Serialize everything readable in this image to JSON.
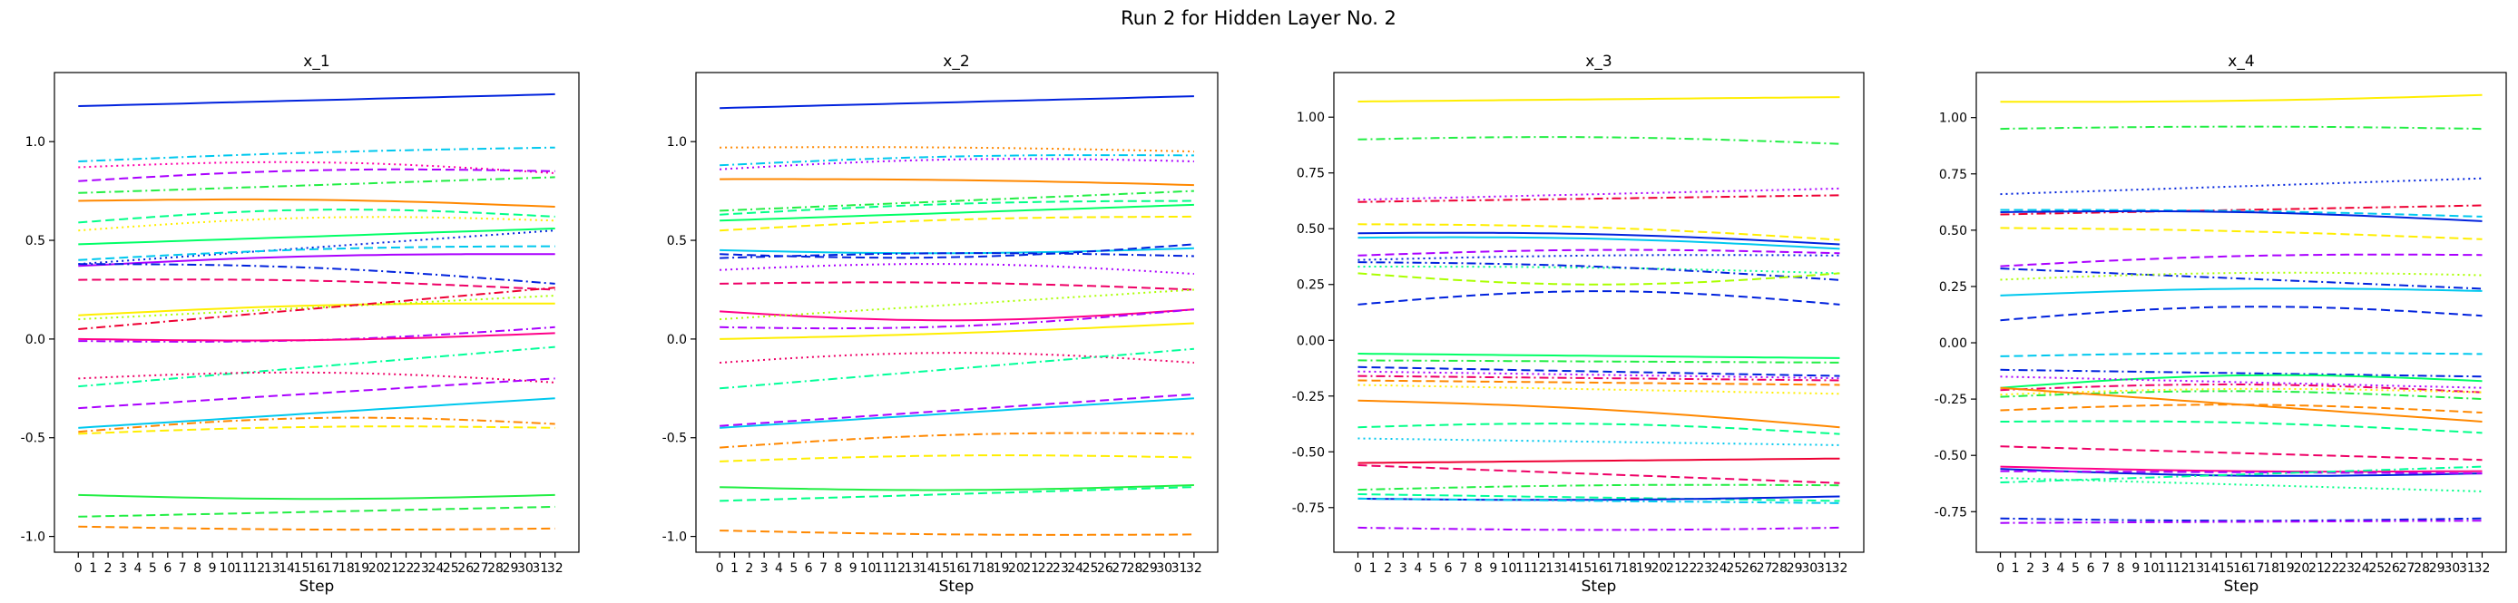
{
  "figure": {
    "title": "Run 2 for Hidden Layer No. 2"
  },
  "chart_data": [
    {
      "type": "line",
      "title": "x_1",
      "xlabel": "Step",
      "ylabel": "",
      "xlim": [
        -1.6,
        33.6
      ],
      "ylim": [
        -1.08,
        1.35
      ],
      "yticks": [
        -1.0,
        -0.5,
        0.0,
        0.5,
        1.0
      ],
      "ytick_labels": [
        "-1.0",
        "-0.5",
        "0.0",
        "0.5",
        "1.0"
      ],
      "series": [
        {
          "color": "#0022dd",
          "style": "solid",
          "start": 1.18,
          "end": 1.24,
          "bend": 0.0
        },
        {
          "color": "#00c8ee",
          "style": "dashdot",
          "start": 0.9,
          "end": 0.97,
          "bend": 0.01
        },
        {
          "color": "#ff00aa",
          "style": "dotted",
          "start": 0.87,
          "end": 0.84,
          "bend": 0.04
        },
        {
          "color": "#aa00ff",
          "style": "dashed",
          "start": 0.8,
          "end": 0.85,
          "bend": 0.03
        },
        {
          "color": "#22ee44",
          "style": "dashdot",
          "start": 0.74,
          "end": 0.82,
          "bend": 0.0
        },
        {
          "color": "#ff8800",
          "style": "solid",
          "start": 0.7,
          "end": 0.67,
          "bend": 0.02
        },
        {
          "color": "#00ff88",
          "style": "dashed",
          "start": 0.59,
          "end": 0.62,
          "bend": 0.05
        },
        {
          "color": "#ffee00",
          "style": "dotted",
          "start": 0.55,
          "end": 0.6,
          "bend": 0.04
        },
        {
          "color": "#00ff66",
          "style": "solid",
          "start": 0.48,
          "end": 0.56,
          "bend": 0.0
        },
        {
          "color": "#0022dd",
          "style": "dotted",
          "start": 0.38,
          "end": 0.55,
          "bend": 0.0
        },
        {
          "color": "#00c8ee",
          "style": "dashed",
          "start": 0.4,
          "end": 0.47,
          "bend": 0.02
        },
        {
          "color": "#aa00ff",
          "style": "solid",
          "start": 0.37,
          "end": 0.43,
          "bend": 0.02
        },
        {
          "color": "#0022dd",
          "style": "dashdot",
          "start": 0.38,
          "end": 0.28,
          "bend": 0.03
        },
        {
          "color": "#ee0066",
          "style": "dashed",
          "start": 0.3,
          "end": 0.25,
          "bend": 0.02
        },
        {
          "color": "#ffee00",
          "style": "solid",
          "start": 0.12,
          "end": 0.18,
          "bend": 0.02
        },
        {
          "color": "#aaff00",
          "style": "dotted",
          "start": 0.1,
          "end": 0.22,
          "bend": 0.0
        },
        {
          "color": "#ee0033",
          "style": "dashdot",
          "start": 0.05,
          "end": 0.26,
          "bend": 0.0
        },
        {
          "color": "#aa00ff",
          "style": "dashdot",
          "start": -0.01,
          "end": 0.06,
          "bend": -0.03
        },
        {
          "color": "#ff0088",
          "style": "solid",
          "start": 0.0,
          "end": 0.03,
          "bend": -0.02
        },
        {
          "color": "#00ff99",
          "style": "dashdot",
          "start": -0.24,
          "end": -0.04,
          "bend": 0.0
        },
        {
          "color": "#ee0066",
          "style": "dotted",
          "start": -0.2,
          "end": -0.22,
          "bend": 0.04
        },
        {
          "color": "#aa00ff",
          "style": "dashed",
          "start": -0.35,
          "end": -0.2,
          "bend": 0.0
        },
        {
          "color": "#00c8ee",
          "style": "solid",
          "start": -0.45,
          "end": -0.3,
          "bend": 0.0
        },
        {
          "color": "#ff8800",
          "style": "dashdot",
          "start": -0.47,
          "end": -0.43,
          "bend": 0.05
        },
        {
          "color": "#ffee00",
          "style": "dashed",
          "start": -0.48,
          "end": -0.45,
          "bend": 0.02
        },
        {
          "color": "#22ee44",
          "style": "solid",
          "start": -0.79,
          "end": -0.79,
          "bend": -0.02
        },
        {
          "color": "#22ee44",
          "style": "dashed",
          "start": -0.9,
          "end": -0.85,
          "bend": 0.0
        },
        {
          "color": "#ff8800",
          "style": "dashed",
          "start": -0.95,
          "end": -0.96,
          "bend": -0.01
        }
      ]
    },
    {
      "type": "line",
      "title": "x_2",
      "xlabel": "Step",
      "ylabel": "",
      "xlim": [
        -1.6,
        33.6
      ],
      "ylim": [
        -1.08,
        1.35
      ],
      "yticks": [
        -1.0,
        -0.5,
        0.0,
        0.5,
        1.0
      ],
      "ytick_labels": [
        "-1.0",
        "-0.5",
        "0.0",
        "0.5",
        "1.0"
      ],
      "series": [
        {
          "color": "#0022dd",
          "style": "solid",
          "start": 1.17,
          "end": 1.23,
          "bend": 0.0
        },
        {
          "color": "#ff8800",
          "style": "dotted",
          "start": 0.97,
          "end": 0.95,
          "bend": 0.01
        },
        {
          "color": "#00c8ee",
          "style": "dashdot",
          "start": 0.88,
          "end": 0.93,
          "bend": 0.02
        },
        {
          "color": "#aa00ff",
          "style": "dotted",
          "start": 0.86,
          "end": 0.9,
          "bend": 0.03
        },
        {
          "color": "#ff8800",
          "style": "solid",
          "start": 0.81,
          "end": 0.78,
          "bend": 0.01
        },
        {
          "color": "#22ee44",
          "style": "dashdot",
          "start": 0.65,
          "end": 0.75,
          "bend": 0.0
        },
        {
          "color": "#00ff88",
          "style": "dashed",
          "start": 0.63,
          "end": 0.7,
          "bend": 0.02
        },
        {
          "color": "#00ff66",
          "style": "solid",
          "start": 0.6,
          "end": 0.68,
          "bend": 0.0
        },
        {
          "color": "#ffee00",
          "style": "dashed",
          "start": 0.55,
          "end": 0.62,
          "bend": 0.02
        },
        {
          "color": "#00c8ee",
          "style": "solid",
          "start": 0.45,
          "end": 0.46,
          "bend": -0.02
        },
        {
          "color": "#0022dd",
          "style": "dashed",
          "start": 0.43,
          "end": 0.48,
          "bend": -0.04
        },
        {
          "color": "#0022dd",
          "style": "dashdot",
          "start": 0.41,
          "end": 0.42,
          "bend": 0.02
        },
        {
          "color": "#aa00ff",
          "style": "dotted",
          "start": 0.35,
          "end": 0.33,
          "bend": 0.04
        },
        {
          "color": "#ee0066",
          "style": "dashed",
          "start": 0.28,
          "end": 0.25,
          "bend": 0.02
        },
        {
          "color": "#ff0088",
          "style": "solid",
          "start": 0.14,
          "end": 0.15,
          "bend": -0.05
        },
        {
          "color": "#aaff00",
          "style": "dotted",
          "start": 0.1,
          "end": 0.25,
          "bend": 0.0
        },
        {
          "color": "#aa00ff",
          "style": "dashdot",
          "start": 0.06,
          "end": 0.15,
          "bend": -0.04
        },
        {
          "color": "#ffee00",
          "style": "solid",
          "start": 0.0,
          "end": 0.08,
          "bend": -0.01
        },
        {
          "color": "#ee0066",
          "style": "dotted",
          "start": -0.12,
          "end": -0.12,
          "bend": 0.05
        },
        {
          "color": "#00ff99",
          "style": "dashdot",
          "start": -0.25,
          "end": -0.05,
          "bend": 0.0
        },
        {
          "color": "#aa00ff",
          "style": "dashed",
          "start": -0.44,
          "end": -0.28,
          "bend": 0.0
        },
        {
          "color": "#00c8ee",
          "style": "solid",
          "start": -0.45,
          "end": -0.3,
          "bend": 0.0
        },
        {
          "color": "#ff8800",
          "style": "dashdot",
          "start": -0.55,
          "end": -0.48,
          "bend": 0.03
        },
        {
          "color": "#ffee00",
          "style": "dashed",
          "start": -0.62,
          "end": -0.6,
          "bend": 0.02
        },
        {
          "color": "#22ee44",
          "style": "solid",
          "start": -0.75,
          "end": -0.74,
          "bend": -0.02
        },
        {
          "color": "#00ff88",
          "style": "dashed",
          "start": -0.82,
          "end": -0.75,
          "bend": 0.0
        },
        {
          "color": "#ff8800",
          "style": "dashed",
          "start": -0.97,
          "end": -0.99,
          "bend": -0.01
        }
      ]
    },
    {
      "type": "line",
      "title": "x_3",
      "xlabel": "Step",
      "ylabel": "",
      "xlim": [
        -1.6,
        33.6
      ],
      "ylim": [
        -0.95,
        1.2
      ],
      "yticks": [
        -0.75,
        -0.5,
        -0.25,
        0.0,
        0.25,
        0.5,
        0.75,
        1.0
      ],
      "ytick_labels": [
        "-0.75",
        "-0.50",
        "-0.25",
        "0.00",
        "0.25",
        "0.50",
        "0.75",
        "1.00"
      ],
      "series": [
        {
          "color": "#ffee00",
          "style": "solid",
          "start": 1.07,
          "end": 1.09,
          "bend": 0.0
        },
        {
          "color": "#22ee44",
          "style": "dashdot",
          "start": 0.9,
          "end": 0.88,
          "bend": 0.02
        },
        {
          "color": "#aa00ff",
          "style": "dotted",
          "start": 0.63,
          "end": 0.68,
          "bend": 0.0
        },
        {
          "color": "#ee0033",
          "style": "dashdot",
          "start": 0.62,
          "end": 0.65,
          "bend": 0.0
        },
        {
          "color": "#ffee00",
          "style": "dashed",
          "start": 0.52,
          "end": 0.45,
          "bend": 0.02
        },
        {
          "color": "#0022dd",
          "style": "solid",
          "start": 0.48,
          "end": 0.43,
          "bend": 0.02
        },
        {
          "color": "#00c8ee",
          "style": "solid",
          "start": 0.46,
          "end": 0.41,
          "bend": 0.02
        },
        {
          "color": "#aa00ff",
          "style": "dashed",
          "start": 0.38,
          "end": 0.39,
          "bend": 0.02
        },
        {
          "color": "#0022dd",
          "style": "dotted",
          "start": 0.36,
          "end": 0.38,
          "bend": 0.01
        },
        {
          "color": "#00ff88",
          "style": "dotted",
          "start": 0.33,
          "end": 0.3,
          "bend": 0.01
        },
        {
          "color": "#0022dd",
          "style": "dashdot",
          "start": 0.35,
          "end": 0.27,
          "bend": 0.02
        },
        {
          "color": "#aaff00",
          "style": "dashed",
          "start": 0.3,
          "end": 0.3,
          "bend": -0.05
        },
        {
          "color": "#0022dd",
          "style": "dashed",
          "start": 0.16,
          "end": 0.16,
          "bend": 0.06
        },
        {
          "color": "#00ff66",
          "style": "solid",
          "start": -0.06,
          "end": -0.08,
          "bend": 0.0
        },
        {
          "color": "#22ee44",
          "style": "dashdot",
          "start": -0.09,
          "end": -0.1,
          "bend": 0.0
        },
        {
          "color": "#0022dd",
          "style": "dashed",
          "start": -0.12,
          "end": -0.16,
          "bend": 0.0
        },
        {
          "color": "#aa00ff",
          "style": "dotted",
          "start": -0.14,
          "end": -0.17,
          "bend": 0.0
        },
        {
          "color": "#ee0066",
          "style": "dashdot",
          "start": -0.16,
          "end": -0.18,
          "bend": 0.0
        },
        {
          "color": "#ff8800",
          "style": "dashed",
          "start": -0.18,
          "end": -0.2,
          "bend": 0.0
        },
        {
          "color": "#ffee00",
          "style": "dotted",
          "start": -0.2,
          "end": -0.24,
          "bend": 0.0
        },
        {
          "color": "#ff8800",
          "style": "solid",
          "start": -0.27,
          "end": -0.39,
          "bend": 0.02
        },
        {
          "color": "#00ff88",
          "style": "dashed",
          "start": -0.39,
          "end": -0.42,
          "bend": 0.03
        },
        {
          "color": "#00c8ee",
          "style": "dotted",
          "start": -0.44,
          "end": -0.47,
          "bend": 0.0
        },
        {
          "color": "#ee0033",
          "style": "solid",
          "start": -0.55,
          "end": -0.53,
          "bend": 0.0
        },
        {
          "color": "#ee0066",
          "style": "dashed",
          "start": -0.56,
          "end": -0.64,
          "bend": 0.0
        },
        {
          "color": "#22ee44",
          "style": "dashdot",
          "start": -0.67,
          "end": -0.65,
          "bend": 0.01
        },
        {
          "color": "#00ff99",
          "style": "dashed",
          "start": -0.69,
          "end": -0.72,
          "bend": 0.0
        },
        {
          "color": "#0022dd",
          "style": "solid",
          "start": -0.71,
          "end": -0.7,
          "bend": -0.01
        },
        {
          "color": "#00c8ee",
          "style": "dashdot",
          "start": -0.71,
          "end": -0.73,
          "bend": 0.0
        },
        {
          "color": "#aa00ff",
          "style": "dashdot",
          "start": -0.84,
          "end": -0.84,
          "bend": -0.01
        }
      ]
    },
    {
      "type": "line",
      "title": "x_4",
      "xlabel": "Step",
      "ylabel": "",
      "xlim": [
        -1.6,
        33.6
      ],
      "ylim": [
        -0.93,
        1.2
      ],
      "yticks": [
        -0.75,
        -0.5,
        -0.25,
        0.0,
        0.25,
        0.5,
        0.75,
        1.0
      ],
      "ytick_labels": [
        "-0.75",
        "-0.50",
        "-0.25",
        "0.00",
        "0.25",
        "0.50",
        "0.75",
        "1.00"
      ],
      "series": [
        {
          "color": "#ffee00",
          "style": "solid",
          "start": 1.07,
          "end": 1.1,
          "bend": -0.01
        },
        {
          "color": "#22ee44",
          "style": "dashdot",
          "start": 0.95,
          "end": 0.95,
          "bend": 0.01
        },
        {
          "color": "#0022dd",
          "style": "dotted",
          "start": 0.66,
          "end": 0.73,
          "bend": 0.0
        },
        {
          "color": "#ee0033",
          "style": "dashdot",
          "start": 0.57,
          "end": 0.61,
          "bend": 0.0
        },
        {
          "color": "#00c8ee",
          "style": "dashed",
          "start": 0.59,
          "end": 0.56,
          "bend": 0.01
        },
        {
          "color": "#0022dd",
          "style": "solid",
          "start": 0.58,
          "end": 0.54,
          "bend": 0.02
        },
        {
          "color": "#ffee00",
          "style": "dashed",
          "start": 0.51,
          "end": 0.46,
          "bend": 0.01
        },
        {
          "color": "#aa00ff",
          "style": "dashed",
          "start": 0.34,
          "end": 0.39,
          "bend": 0.02
        },
        {
          "color": "#0022dd",
          "style": "dashdot",
          "start": 0.33,
          "end": 0.24,
          "bend": 0.0
        },
        {
          "color": "#aaff00",
          "style": "dotted",
          "start": 0.28,
          "end": 0.3,
          "bend": 0.02
        },
        {
          "color": "#00c8ee",
          "style": "solid",
          "start": 0.21,
          "end": 0.23,
          "bend": 0.02
        },
        {
          "color": "#0022dd",
          "style": "dashed",
          "start": 0.1,
          "end": 0.12,
          "bend": 0.05
        },
        {
          "color": "#00c8ee",
          "style": "dashed",
          "start": -0.06,
          "end": -0.05,
          "bend": 0.01
        },
        {
          "color": "#0022dd",
          "style": "dashdot",
          "start": -0.12,
          "end": -0.15,
          "bend": 0.0
        },
        {
          "color": "#00ff66",
          "style": "solid",
          "start": -0.2,
          "end": -0.17,
          "bend": 0.04
        },
        {
          "color": "#aa00ff",
          "style": "dotted",
          "start": -0.15,
          "end": -0.2,
          "bend": 0.0
        },
        {
          "color": "#ee0066",
          "style": "dashdot",
          "start": -0.21,
          "end": -0.22,
          "bend": 0.03
        },
        {
          "color": "#ffee00",
          "style": "dotted",
          "start": -0.23,
          "end": -0.22,
          "bend": 0.02
        },
        {
          "color": "#22ee44",
          "style": "dashdot",
          "start": -0.24,
          "end": -0.25,
          "bend": 0.03
        },
        {
          "color": "#ff8800",
          "style": "solid",
          "start": -0.2,
          "end": -0.35,
          "bend": 0.0
        },
        {
          "color": "#ff8800",
          "style": "dashed",
          "start": -0.3,
          "end": -0.31,
          "bend": 0.03
        },
        {
          "color": "#00ff88",
          "style": "dashed",
          "start": -0.35,
          "end": -0.4,
          "bend": 0.02
        },
        {
          "color": "#ee0066",
          "style": "dashed",
          "start": -0.46,
          "end": -0.52,
          "bend": 0.0
        },
        {
          "color": "#0022dd",
          "style": "solid",
          "start": -0.56,
          "end": -0.58,
          "bend": -0.02
        },
        {
          "color": "#ff0088",
          "style": "solid",
          "start": -0.55,
          "end": -0.57,
          "bend": -0.01
        },
        {
          "color": "#aa00ff",
          "style": "dashed",
          "start": -0.57,
          "end": -0.58,
          "bend": 0.0
        },
        {
          "color": "#00ff99",
          "style": "dashdot",
          "start": -0.62,
          "end": -0.55,
          "bend": 0.0
        },
        {
          "color": "#00ff88",
          "style": "dotted",
          "start": -0.6,
          "end": -0.66,
          "bend": 0.0
        },
        {
          "color": "#0022dd",
          "style": "dashdot",
          "start": -0.78,
          "end": -0.78,
          "bend": -0.01
        },
        {
          "color": "#aa00ff",
          "style": "dashdot",
          "start": -0.8,
          "end": -0.79,
          "bend": 0.0
        }
      ]
    }
  ]
}
